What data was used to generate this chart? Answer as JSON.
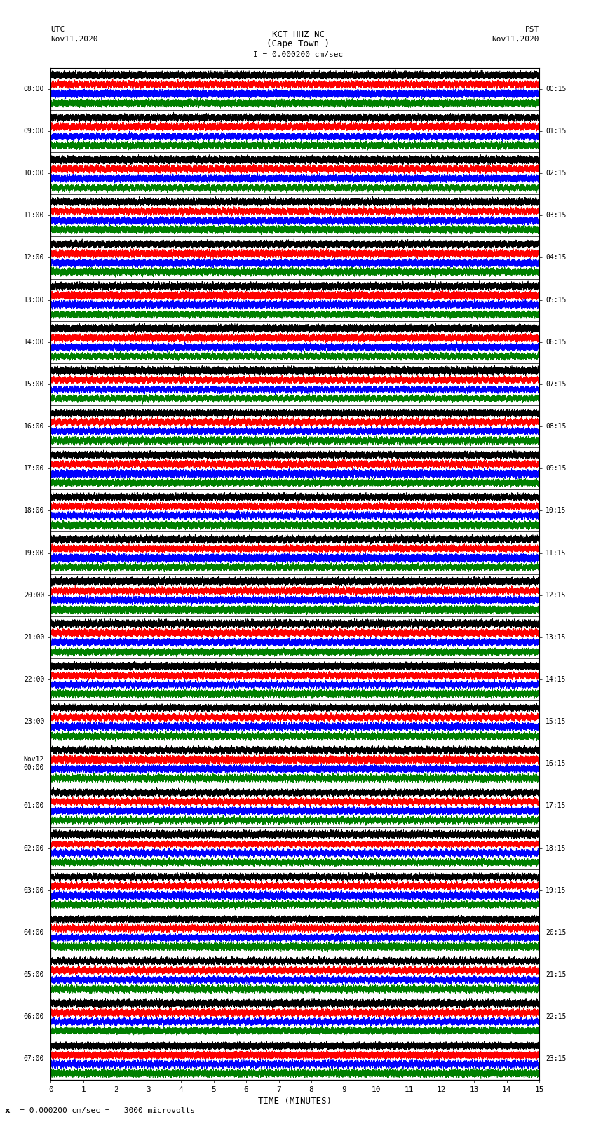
{
  "title_line1": "KCT HHZ NC",
  "title_line2": "(Cape Town )",
  "title_line3": "I = 0.000200 cm/sec",
  "top_left_line1": "UTC",
  "top_left_line2": "Nov11,2020",
  "top_right_line1": "PST",
  "top_right_line2": "Nov11,2020",
  "bottom_xlabel": "TIME (MINUTES)",
  "bottom_note": "x  = 0.000200 cm/sec =   3000 microvolts",
  "utc_times": [
    "08:00",
    "09:00",
    "10:00",
    "11:00",
    "12:00",
    "13:00",
    "14:00",
    "15:00",
    "16:00",
    "17:00",
    "18:00",
    "19:00",
    "20:00",
    "21:00",
    "22:00",
    "23:00",
    "Nov12\n00:00",
    "01:00",
    "02:00",
    "03:00",
    "04:00",
    "05:00",
    "06:00",
    "07:00"
  ],
  "pst_times": [
    "00:15",
    "01:15",
    "02:15",
    "03:15",
    "04:15",
    "05:15",
    "06:15",
    "07:15",
    "08:15",
    "09:15",
    "10:15",
    "11:15",
    "12:15",
    "13:15",
    "14:15",
    "15:15",
    "16:15",
    "17:15",
    "18:15",
    "19:15",
    "20:15",
    "21:15",
    "22:15",
    "23:15"
  ],
  "n_rows": 24,
  "minutes_per_row": 15,
  "fig_width": 8.5,
  "fig_height": 16.13,
  "bg_color": "#ffffff",
  "seismo_colors": [
    "black",
    "red",
    "blue",
    "green"
  ],
  "x_ticks": [
    0,
    1,
    2,
    3,
    4,
    5,
    6,
    7,
    8,
    9,
    10,
    11,
    12,
    13,
    14,
    15
  ]
}
